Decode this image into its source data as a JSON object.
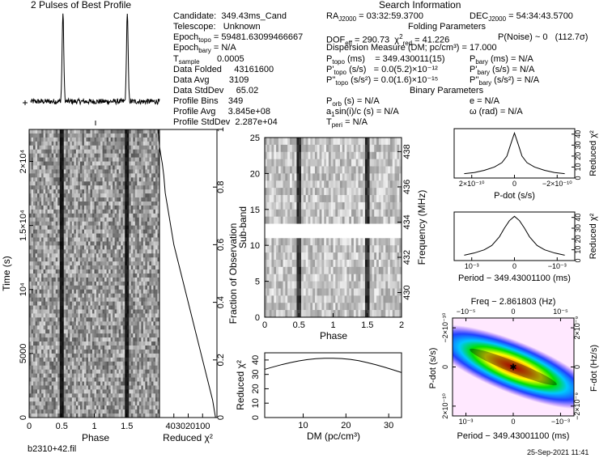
{
  "header": {
    "profile_title": "2 Pulses of Best Profile",
    "search_title": "Search Information",
    "folding_title": "Folding Parameters",
    "binary_title": "Binary Parameters",
    "candidate": "Candidate:  349.43ms_Cand",
    "telescope": "Telescope:   Unknown",
    "epoch_topo": "59481.63099466667",
    "epoch_bary": "N/A",
    "t_sample": "0.0005",
    "data_folded": "43161600",
    "data_avg": "3109",
    "data_stddev": "65.02",
    "profile_bins": "349",
    "profile_avg": "3.845e+08",
    "profile_stddev": "2.287e+04",
    "ra": "03:32:59.3700",
    "dec": "54:34:43.5700",
    "dof_eff": "290.73",
    "chi2_red": "41.226",
    "p_noise": "P(Noise) ~ 0   (112.7σ)",
    "dm_line": "Dispersion Measure (DM; pc/cm³) = 17.000",
    "p_topo": "349.430011(15)",
    "pd_topo": "0.0(5.2)×10⁻¹²",
    "pdd_topo": "0.0(1.6)×10⁻¹⁵",
    "p_bary": "N/A",
    "pd_bary": "N/A",
    "pdd_bary": "N/A",
    "p_orb": "N/A",
    "a1sini": "N/A",
    "t_peri": "N/A",
    "ecc": "N/A",
    "omega": "N/A",
    "filename": "b2310+42.fil",
    "date": "25-Sep-2021 11:41"
  },
  "colors": {
    "line": "#000000",
    "grid": "#000000"
  },
  "chart_data": [
    {
      "type": "line",
      "id": "pulse-profile",
      "title": "2 Pulses of Best Profile",
      "x": [
        0,
        0.04,
        0.08,
        0.12,
        0.16,
        0.2,
        0.24,
        0.28,
        0.32,
        0.36,
        0.4,
        0.44,
        0.47,
        0.49,
        0.5,
        0.51,
        0.53,
        0.56,
        0.6,
        0.64,
        0.68,
        0.72,
        0.76,
        0.8,
        0.84,
        0.88,
        0.92,
        0.96,
        1.0,
        1.04,
        1.08,
        1.12,
        1.16,
        1.2,
        1.24,
        1.28,
        1.32,
        1.36,
        1.4,
        1.44,
        1.47,
        1.49,
        1.5,
        1.51,
        1.53,
        1.56,
        1.6,
        1.64,
        1.68,
        1.72,
        1.76,
        1.8,
        1.84,
        1.88,
        1.92,
        1.96,
        2.0
      ],
      "y": [
        0.05,
        0.08,
        0.02,
        0.1,
        0.04,
        0.09,
        0.03,
        0.07,
        0.05,
        0.1,
        0.06,
        0.12,
        0.25,
        0.7,
        1.0,
        0.65,
        0.22,
        0.08,
        0.05,
        0.09,
        0.04,
        0.1,
        0.06,
        0.08,
        0.03,
        0.09,
        0.05,
        0.08,
        0.05,
        0.08,
        0.02,
        0.1,
        0.04,
        0.09,
        0.03,
        0.07,
        0.05,
        0.1,
        0.06,
        0.12,
        0.25,
        0.7,
        1.0,
        0.65,
        0.22,
        0.08,
        0.05,
        0.09,
        0.04,
        0.1,
        0.06,
        0.08,
        0.03,
        0.09,
        0.05,
        0.08,
        0.05
      ]
    },
    {
      "type": "heatmap",
      "id": "time-phase",
      "xlabel": "Phase",
      "ylabel": "Time (s)",
      "xlim": [
        0,
        2
      ],
      "xticks": [
        "0",
        "0.5",
        "1",
        "1.5"
      ],
      "yticks": [
        "0",
        "5000",
        "10⁴",
        "1.5×10⁴",
        "2×10⁴"
      ],
      "ylim": [
        0,
        22500
      ],
      "pulse_phases": [
        0.5,
        1.5
      ]
    },
    {
      "type": "line",
      "id": "chi2-vs-time",
      "xlabel": "Reduced χ²",
      "ylabel": "Fraction of Observation",
      "xticks": [
        "40",
        "30",
        "20",
        "10",
        "0"
      ],
      "yticks": [
        "0",
        "0.2",
        "0.4",
        "0.6",
        "0.8",
        "1"
      ],
      "xlim": [
        40,
        0
      ],
      "ylim": [
        0,
        1
      ],
      "x": [
        1,
        3,
        6,
        9,
        12,
        15,
        18,
        21,
        24,
        27,
        30,
        32,
        34,
        36,
        37,
        38,
        40,
        41
      ],
      "y": [
        0,
        0.06,
        0.12,
        0.18,
        0.24,
        0.3,
        0.36,
        0.42,
        0.48,
        0.54,
        0.6,
        0.66,
        0.72,
        0.78,
        0.84,
        0.88,
        0.94,
        1.0
      ]
    },
    {
      "type": "heatmap",
      "id": "subband-phase",
      "xlabel": "Phase",
      "ylabel": "Sub-band",
      "y2label": "Frequency (MHz)",
      "xlim": [
        0,
        2
      ],
      "ylim": [
        0,
        25
      ],
      "xticks": [
        "0",
        "0.5",
        "1",
        "1.5",
        "2"
      ],
      "yticks": [
        "0",
        "5",
        "10",
        "15",
        "20",
        "25"
      ],
      "y2ticks": [
        "430",
        "432",
        "434",
        "436",
        "438"
      ],
      "masked_band": [
        11,
        13
      ],
      "pulse_phases": [
        0.5,
        1.5
      ]
    },
    {
      "type": "line",
      "id": "chi2-vs-dm",
      "xlabel": "DM (pc/cm³)",
      "ylabel": "Reduced χ²",
      "xlim": [
        1,
        33
      ],
      "ylim": [
        0,
        45
      ],
      "xticks": [
        "10",
        "20",
        "30"
      ],
      "yticks": [
        "0",
        "10",
        "20",
        "30",
        "40"
      ],
      "x": [
        1,
        3,
        5,
        7,
        9,
        11,
        13,
        15,
        17,
        19,
        21,
        23,
        25,
        27,
        29,
        31,
        33
      ],
      "y": [
        33.5,
        35.2,
        36.8,
        38.2,
        39.4,
        40.3,
        40.9,
        41.2,
        41.2,
        41.0,
        40.4,
        39.5,
        38.2,
        36.7,
        35.0,
        33.2,
        31.3
      ]
    },
    {
      "type": "line",
      "id": "chi2-vs-pdot",
      "xlabel": "P-dot (s/s)",
      "ylabel": "Reduced χ²",
      "xticks": [
        "2×10⁻¹⁰",
        "0",
        "−2×10⁻¹⁰"
      ],
      "yticks": [
        "0",
        "10",
        "20",
        "30",
        "40"
      ],
      "ylim": [
        0,
        45
      ],
      "x": [
        -1,
        -0.8,
        -0.6,
        -0.4,
        -0.25,
        -0.15,
        -0.08,
        0,
        0.08,
        0.15,
        0.25,
        0.4,
        0.6,
        0.8,
        1
      ],
      "y": [
        4,
        5,
        7,
        10,
        14,
        20,
        30,
        41,
        30,
        20,
        14,
        10,
        7,
        5,
        4
      ]
    },
    {
      "type": "line",
      "id": "chi2-vs-period",
      "xlabel": "Period − 349.43001100 (ms)",
      "ylabel": "Reduced χ²",
      "xticks": [
        "10⁻³",
        "0",
        "−10⁻³"
      ],
      "yticks": [
        "0",
        "10",
        "20",
        "30",
        "40"
      ],
      "ylim": [
        0,
        45
      ],
      "x": [
        -1,
        -0.8,
        -0.6,
        -0.45,
        -0.3,
        -0.2,
        -0.1,
        0,
        0.1,
        0.2,
        0.3,
        0.45,
        0.6,
        0.8,
        1
      ],
      "y": [
        5,
        7,
        10,
        14,
        22,
        30,
        37,
        41,
        37,
        30,
        22,
        14,
        10,
        7,
        5
      ]
    },
    {
      "type": "heatmap",
      "id": "p-pdot-plane",
      "title": "Freq − 2.861803 (Hz)",
      "xlabel": "Period − 349.43001100 (ms)",
      "ylabel": "P-dot (s/s)",
      "y2label": "F-dot (Hz/s)",
      "xticks": [
        "10⁻³",
        "0",
        "−10⁻³"
      ],
      "x2ticks": [
        "−10⁻⁵",
        "0",
        "10⁻⁵"
      ],
      "yticks": [
        "−2×10⁻¹⁰",
        "0",
        "2×10⁻¹⁰"
      ],
      "y2ticks": [
        "2×10⁻⁹",
        "0",
        "−2×10⁻⁹"
      ]
    }
  ]
}
